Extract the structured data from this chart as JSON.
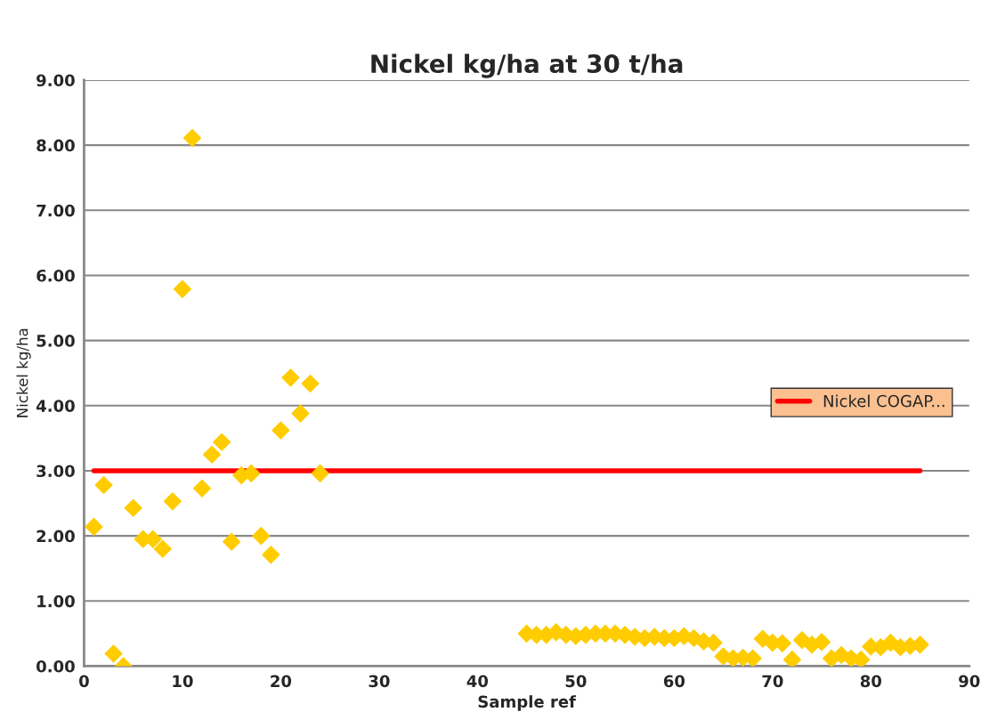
{
  "chart_data": {
    "type": "scatter",
    "title": "Nickel kg/ha at 30 t/ha",
    "xlabel": "Sample ref",
    "ylabel": "Nickel kg/ha",
    "series": [
      {
        "color": "#ffcc00",
        "marker": "diamond",
        "x": [
          1,
          2,
          3,
          4,
          5,
          6,
          7,
          8,
          9,
          10,
          11,
          12,
          13,
          14,
          15,
          16,
          17,
          18,
          19,
          20,
          21,
          22,
          23,
          24,
          45,
          46,
          47,
          48,
          49,
          50,
          51,
          52,
          53,
          54,
          55,
          56,
          57,
          58,
          59,
          60,
          61,
          62,
          63,
          64,
          65,
          66,
          67,
          68,
          69,
          70,
          71,
          72,
          73,
          74,
          75,
          76,
          77,
          78,
          79,
          80,
          81,
          82,
          83,
          84,
          85
        ],
        "values": [
          2.14,
          2.78,
          0.19,
          0.0,
          2.43,
          1.95,
          1.95,
          1.8,
          2.53,
          5.79,
          8.11,
          2.73,
          3.25,
          3.44,
          1.91,
          2.93,
          2.96,
          2.0,
          1.71,
          3.62,
          4.43,
          3.88,
          4.34,
          2.96,
          0.5,
          0.48,
          0.48,
          0.52,
          0.48,
          0.46,
          0.48,
          0.5,
          0.5,
          0.5,
          0.48,
          0.45,
          0.43,
          0.45,
          0.43,
          0.43,
          0.46,
          0.43,
          0.38,
          0.36,
          0.15,
          0.12,
          0.13,
          0.12,
          0.42,
          0.36,
          0.35,
          0.1,
          0.4,
          0.33,
          0.37,
          0.12,
          0.17,
          0.12,
          0.1,
          0.3,
          0.29,
          0.36,
          0.29,
          0.31,
          0.33
        ]
      },
      {
        "type": "line",
        "name": "Nickel COGAP...",
        "color": "#ff0000",
        "marker": "none",
        "line_style": "solid",
        "x": [
          1,
          85
        ],
        "values": [
          3.0,
          3.0
        ]
      }
    ],
    "xlim": [
      0,
      90
    ],
    "xticks": [
      0,
      10,
      20,
      30,
      40,
      50,
      60,
      70,
      80,
      90
    ],
    "ylim": [
      0,
      9
    ],
    "yticks": [
      {
        "value": 0,
        "label": "0.00"
      },
      {
        "value": 1,
        "label": "1.00"
      },
      {
        "value": 2,
        "label": "2.00"
      },
      {
        "value": 3,
        "label": "3.00"
      },
      {
        "value": 4,
        "label": "4.00"
      },
      {
        "value": 5,
        "label": "5.00"
      },
      {
        "value": 6,
        "label": "6.00"
      },
      {
        "value": 7,
        "label": "7.00"
      },
      {
        "value": 8,
        "label": "8.00"
      },
      {
        "value": 9,
        "label": "9.00"
      }
    ],
    "grid": "y",
    "legend": "right"
  }
}
